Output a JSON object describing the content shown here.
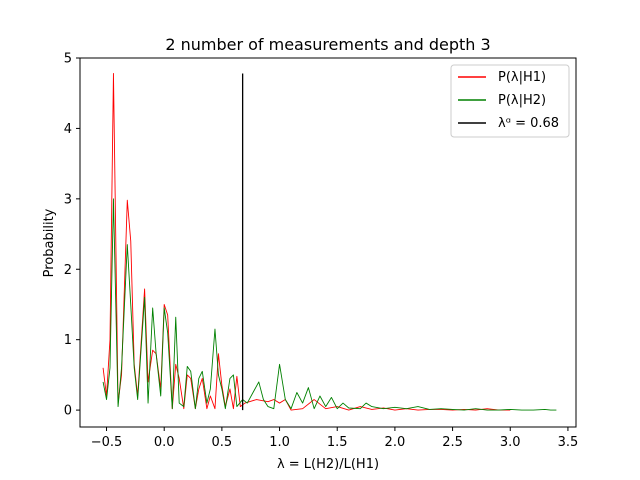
{
  "chart_data": {
    "type": "line",
    "title": "2 number of measurements and depth 3",
    "xlabel": "λ = L(H2)/L(H1)",
    "ylabel": "Probability",
    "xlim": [
      -0.73,
      3.57
    ],
    "ylim": [
      -0.24,
      5.0
    ],
    "xticks": [
      -0.5,
      0.0,
      0.5,
      1.0,
      1.5,
      2.0,
      2.5,
      3.0,
      3.5
    ],
    "xtick_labels": [
      "−0.5",
      "0.0",
      "0.5",
      "1.0",
      "1.5",
      "2.0",
      "2.5",
      "3.0",
      "3.5"
    ],
    "yticks": [
      0,
      1,
      2,
      3,
      4,
      5
    ],
    "ytick_labels": [
      "0",
      "1",
      "2",
      "3",
      "4",
      "5"
    ],
    "grid": false,
    "legend_position": "top-right",
    "series": [
      {
        "name": "P(λ|H1)",
        "color": "#ff0000",
        "points": [
          [
            -0.53,
            0.6
          ],
          [
            -0.5,
            0.2
          ],
          [
            -0.47,
            1.0
          ],
          [
            -0.44,
            4.78
          ],
          [
            -0.4,
            0.1
          ],
          [
            -0.37,
            0.5
          ],
          [
            -0.32,
            2.98
          ],
          [
            -0.29,
            2.4
          ],
          [
            -0.26,
            0.65
          ],
          [
            -0.23,
            0.2
          ],
          [
            -0.17,
            1.72
          ],
          [
            -0.14,
            0.4
          ],
          [
            -0.1,
            0.85
          ],
          [
            -0.07,
            0.8
          ],
          [
            -0.03,
            0.3
          ],
          [
            0.0,
            1.5
          ],
          [
            0.03,
            1.35
          ],
          [
            0.07,
            0.02
          ],
          [
            0.1,
            0.65
          ],
          [
            0.13,
            0.45
          ],
          [
            0.17,
            0.02
          ],
          [
            0.2,
            0.5
          ],
          [
            0.23,
            0.45
          ],
          [
            0.27,
            0.02
          ],
          [
            0.3,
            0.3
          ],
          [
            0.33,
            0.45
          ],
          [
            0.37,
            0.02
          ],
          [
            0.4,
            0.2
          ],
          [
            0.44,
            0.02
          ],
          [
            0.47,
            0.8
          ],
          [
            0.5,
            0.35
          ],
          [
            0.53,
            0.05
          ],
          [
            0.57,
            0.3
          ],
          [
            0.6,
            0.02
          ],
          [
            0.63,
            0.48
          ],
          [
            0.66,
            0.05
          ],
          [
            0.7,
            0.1
          ],
          [
            0.8,
            0.15
          ],
          [
            0.9,
            0.12
          ],
          [
            0.95,
            0.15
          ],
          [
            1.0,
            0.1
          ],
          [
            1.05,
            0.15
          ],
          [
            1.1,
            0.0
          ],
          [
            1.2,
            0.02
          ],
          [
            1.3,
            0.15
          ],
          [
            1.4,
            0.02
          ],
          [
            1.5,
            0.05
          ],
          [
            1.6,
            0.0
          ],
          [
            1.7,
            0.05
          ],
          [
            1.8,
            0.01
          ],
          [
            1.9,
            0.03
          ],
          [
            2.0,
            0.0
          ],
          [
            2.1,
            0.02
          ],
          [
            2.2,
            0.0
          ],
          [
            2.3,
            0.01
          ],
          [
            2.4,
            0.01
          ],
          [
            2.5,
            0.0
          ],
          [
            2.6,
            0.01
          ],
          [
            2.7,
            0.0
          ],
          [
            2.8,
            0.02
          ],
          [
            2.9,
            0.0
          ],
          [
            3.0,
            0.0
          ]
        ]
      },
      {
        "name": "P(λ|H2)",
        "color": "#008000",
        "points": [
          [
            -0.53,
            0.4
          ],
          [
            -0.5,
            0.15
          ],
          [
            -0.47,
            0.6
          ],
          [
            -0.44,
            3.0
          ],
          [
            -0.4,
            0.05
          ],
          [
            -0.37,
            0.6
          ],
          [
            -0.32,
            2.35
          ],
          [
            -0.29,
            1.5
          ],
          [
            -0.26,
            0.6
          ],
          [
            -0.23,
            0.15
          ],
          [
            -0.17,
            1.6
          ],
          [
            -0.14,
            0.1
          ],
          [
            -0.1,
            1.45
          ],
          [
            -0.07,
            0.8
          ],
          [
            -0.03,
            0.2
          ],
          [
            0.0,
            1.45
          ],
          [
            0.03,
            1.1
          ],
          [
            0.07,
            0.02
          ],
          [
            0.1,
            1.32
          ],
          [
            0.13,
            0.1
          ],
          [
            0.17,
            0.05
          ],
          [
            0.2,
            0.62
          ],
          [
            0.23,
            0.55
          ],
          [
            0.27,
            0.02
          ],
          [
            0.3,
            0.45
          ],
          [
            0.33,
            0.55
          ],
          [
            0.37,
            0.1
          ],
          [
            0.4,
            0.3
          ],
          [
            0.44,
            1.15
          ],
          [
            0.47,
            0.5
          ],
          [
            0.5,
            0.3
          ],
          [
            0.53,
            0.02
          ],
          [
            0.57,
            0.45
          ],
          [
            0.6,
            0.5
          ],
          [
            0.63,
            0.05
          ],
          [
            0.68,
            0.15
          ],
          [
            0.72,
            0.1
          ],
          [
            0.78,
            0.28
          ],
          [
            0.82,
            0.4
          ],
          [
            0.86,
            0.15
          ],
          [
            0.9,
            0.05
          ],
          [
            0.95,
            0.02
          ],
          [
            1.0,
            0.65
          ],
          [
            1.05,
            0.15
          ],
          [
            1.1,
            0.02
          ],
          [
            1.15,
            0.25
          ],
          [
            1.2,
            0.1
          ],
          [
            1.25,
            0.32
          ],
          [
            1.3,
            0.02
          ],
          [
            1.35,
            0.2
          ],
          [
            1.4,
            0.05
          ],
          [
            1.45,
            0.18
          ],
          [
            1.5,
            0.02
          ],
          [
            1.55,
            0.1
          ],
          [
            1.6,
            0.03
          ],
          [
            1.7,
            0.02
          ],
          [
            1.75,
            0.1
          ],
          [
            1.8,
            0.05
          ],
          [
            1.9,
            0.02
          ],
          [
            2.0,
            0.04
          ],
          [
            2.1,
            0.02
          ],
          [
            2.2,
            0.05
          ],
          [
            2.3,
            0.01
          ],
          [
            2.4,
            0.02
          ],
          [
            2.5,
            0.01
          ],
          [
            2.6,
            0.0
          ],
          [
            2.7,
            0.02
          ],
          [
            2.8,
            0.0
          ],
          [
            2.9,
            0.0
          ],
          [
            3.0,
            0.01
          ],
          [
            3.1,
            0.0
          ],
          [
            3.2,
            0.0
          ],
          [
            3.3,
            0.01
          ],
          [
            3.35,
            0.0
          ],
          [
            3.4,
            0.0
          ]
        ]
      }
    ],
    "vline": {
      "name": "λᵅ = 0.68",
      "x": 0.68,
      "ymin": 0.0,
      "ymax": 4.78,
      "color": "#000000"
    }
  }
}
